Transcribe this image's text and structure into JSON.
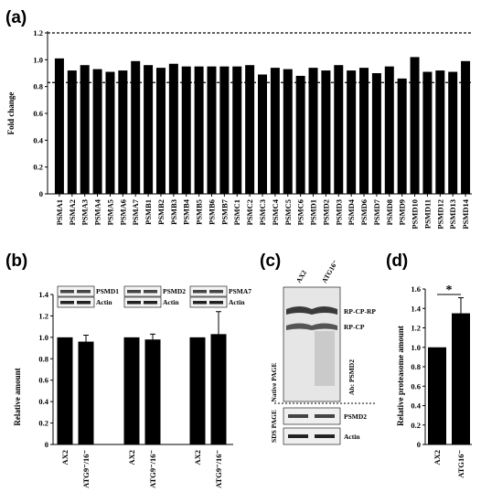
{
  "panels": {
    "a": "(a)",
    "b": "(b)",
    "c": "(c)",
    "d": "(d)"
  },
  "chart_data": [
    {
      "type": "bar",
      "panel": "a",
      "ylabel": "Fold change",
      "ylim": [
        0,
        1.2
      ],
      "yticks": [
        "0",
        "0.2",
        "0.4",
        "0.6",
        "0.8",
        "1.0",
        "1.2"
      ],
      "reference_lines": [
        1.2,
        0.83
      ],
      "categories": [
        "PSMA1",
        "PSMA2",
        "PSMA3",
        "PSMA4",
        "PSMA5",
        "PSMA6",
        "PSMA7",
        "PSMB1",
        "PSMB2",
        "PSMB3",
        "PSMB4",
        "PSMB5",
        "PSMB6",
        "PSMB7",
        "PSMC1",
        "PSMC2",
        "PSMC3",
        "PSMC4",
        "PSMC5",
        "PSMC6",
        "PSMD1",
        "PSMD2",
        "PSMD3",
        "PSMD4",
        "PSMD6",
        "PSMD7",
        "PSMD8",
        "PSMD9",
        "PSMD10",
        "PSMD11",
        "PSMD12",
        "PSMD13",
        "PSMD14"
      ],
      "values": [
        1.01,
        0.92,
        0.96,
        0.93,
        0.91,
        0.92,
        0.99,
        0.96,
        0.94,
        0.97,
        0.95,
        0.95,
        0.95,
        0.95,
        0.95,
        0.96,
        0.89,
        0.94,
        0.93,
        0.88,
        0.94,
        0.92,
        0.96,
        0.92,
        0.94,
        0.9,
        0.95,
        0.86,
        1.02,
        0.91,
        0.92,
        0.91,
        0.99
      ]
    },
    {
      "type": "bar",
      "panel": "b",
      "ylabel": "Relative amount",
      "ylim": [
        0,
        1.4
      ],
      "yticks": [
        "0",
        "0.2",
        "0.4",
        "0.6",
        "0.8",
        "1.0",
        "1.2",
        "1.4"
      ],
      "categories": [
        "AX2",
        "ATG9⁻/16⁻",
        "AX2",
        "ATG9⁻/16⁻",
        "AX2",
        "ATG9⁻/16⁻"
      ],
      "groups": [
        "PSMD1",
        "PSMD2",
        "PSMA7"
      ],
      "values": [
        1.0,
        0.96,
        1.0,
        0.98,
        1.0,
        1.03
      ],
      "errors": [
        0,
        0.06,
        0,
        0.05,
        0,
        0.21
      ],
      "blot_labels": [
        "PSMD1",
        "Actin",
        "PSMD2",
        "Actin",
        "PSMA7",
        "Actin"
      ]
    },
    {
      "type": "bar",
      "panel": "d",
      "ylabel": "Relative proteasome amount",
      "ylim": [
        0,
        1.6
      ],
      "yticks": [
        "0",
        "0.2",
        "0.4",
        "0.6",
        "0.8",
        "1.0",
        "1.2",
        "1.4",
        "1.6"
      ],
      "categories": [
        "AX2",
        "ATG16⁻"
      ],
      "values": [
        1.0,
        1.35
      ],
      "errors": [
        0,
        0.16
      ],
      "significance": "*"
    }
  ],
  "blot_c": {
    "lanes": [
      "AX2",
      "ATG16⁻"
    ],
    "band_labels": [
      "RP-CP-RP",
      "RP-CP"
    ],
    "antibody": "Ab: PSMD2",
    "native_label": "Native PAGE",
    "sds_label": "SDS PAGE",
    "sds_bands": [
      "PSMD2",
      "Actin"
    ]
  }
}
